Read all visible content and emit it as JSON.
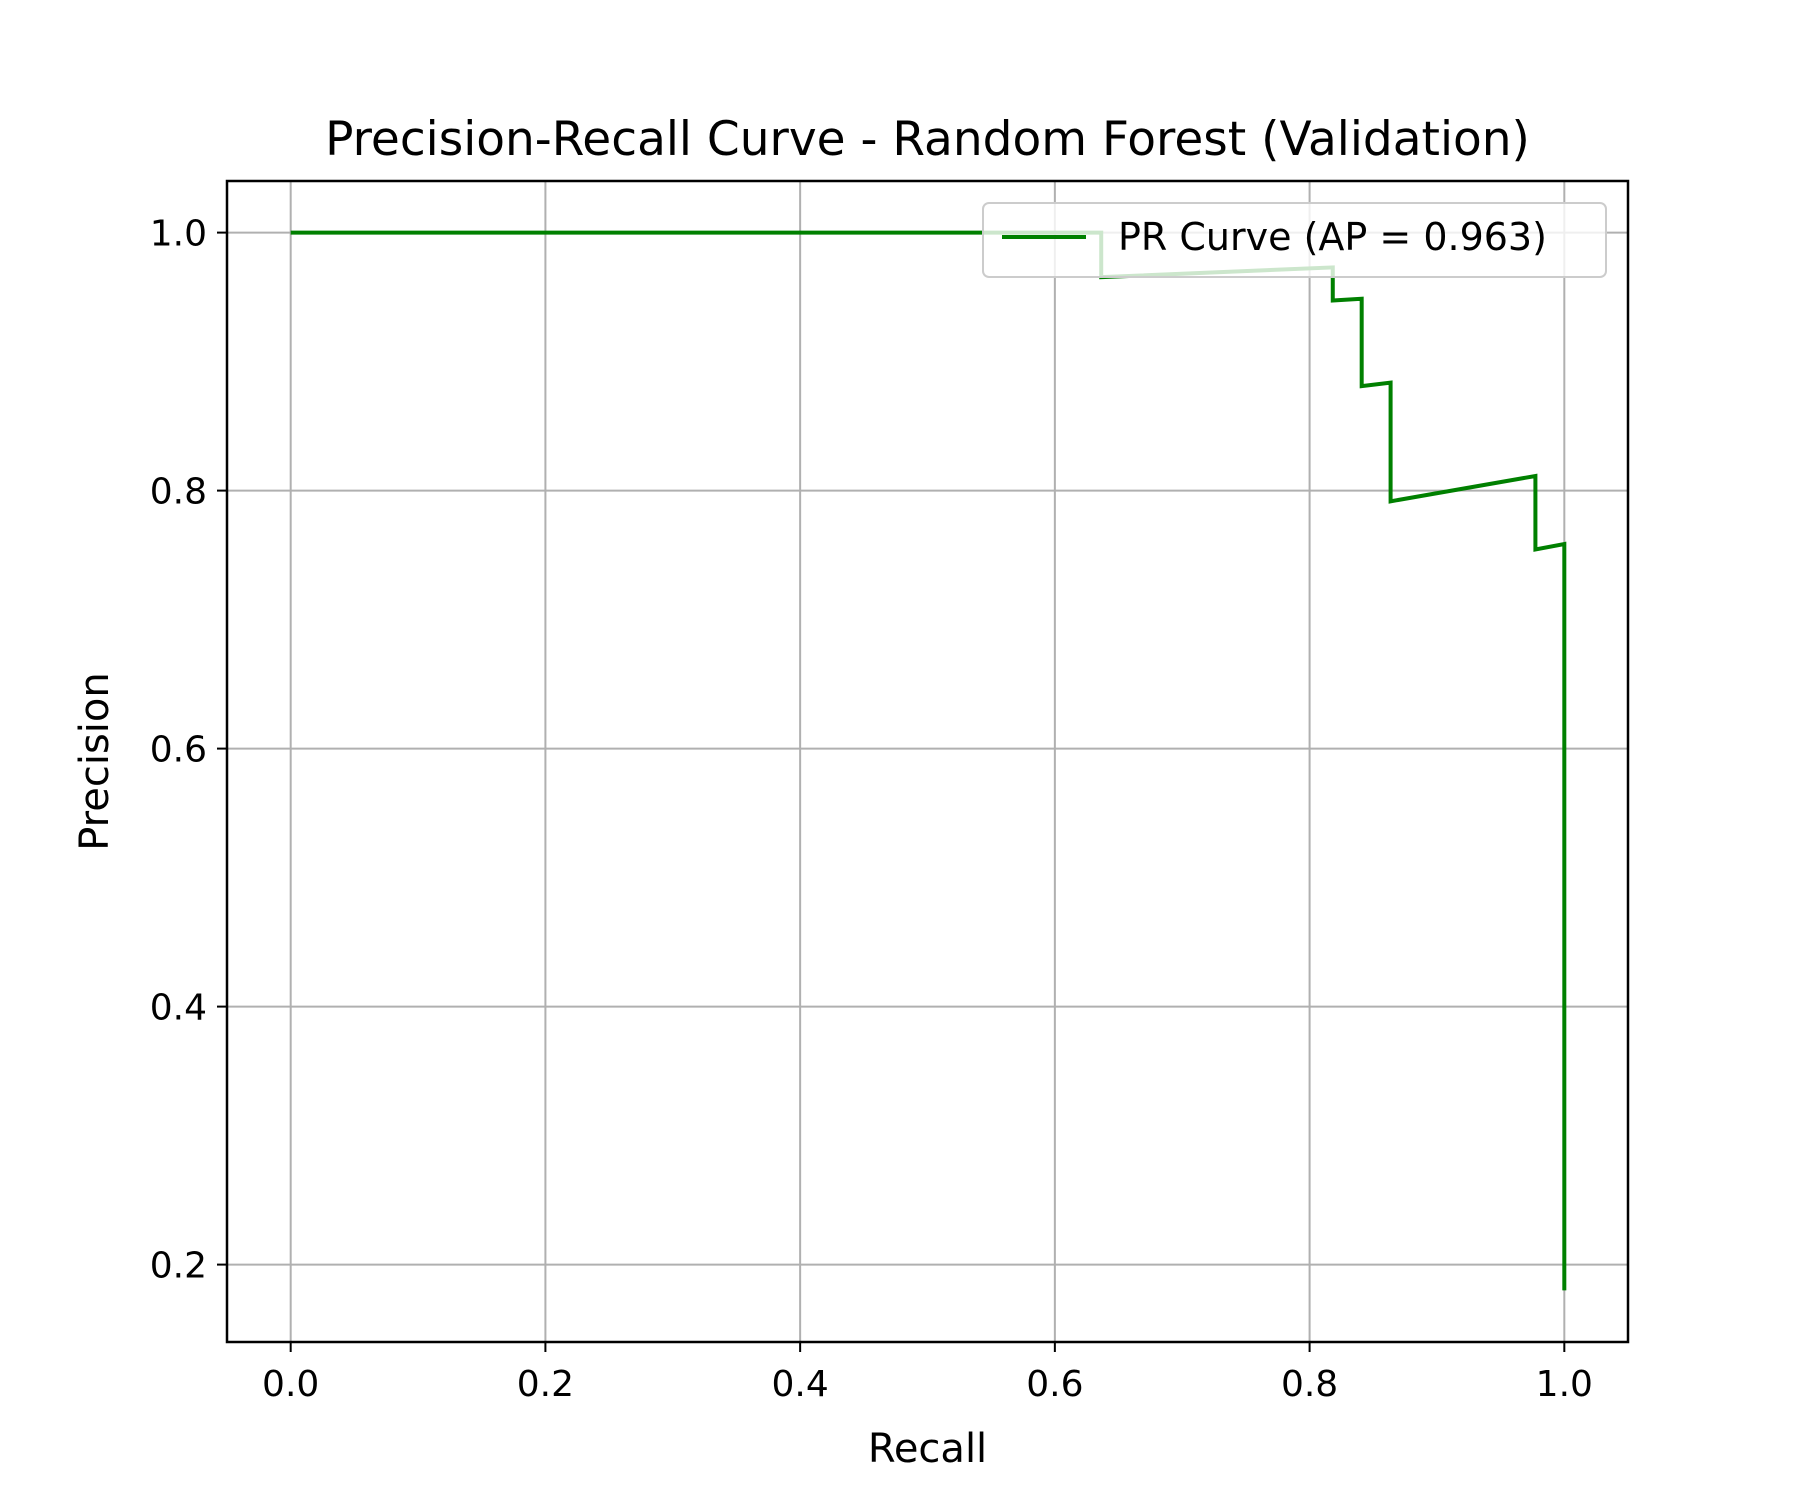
{
  "chart_data": {
    "type": "line",
    "title": "Precision-Recall Curve - Random Forest (Validation)",
    "xlabel": "Recall",
    "ylabel": "Precision",
    "xlim": [
      -0.05,
      1.05
    ],
    "ylim": [
      0.14,
      1.04
    ],
    "xticks": [
      0.0,
      0.2,
      0.4,
      0.6,
      0.8,
      1.0
    ],
    "xtick_labels": [
      "0.0",
      "0.2",
      "0.4",
      "0.6",
      "0.8",
      "1.0"
    ],
    "yticks": [
      0.2,
      0.4,
      0.6,
      0.8,
      1.0
    ],
    "ytick_labels": [
      "0.2",
      "0.4",
      "0.6",
      "0.8",
      "1.0"
    ],
    "grid": true,
    "legend_position": "upper right",
    "series": [
      {
        "name": "PR Curve (AP = 0.963)",
        "color": "#008000",
        "x": [
          0.0,
          0.6364,
          0.6364,
          0.8182,
          0.8182,
          0.8409,
          0.8409,
          0.8636,
          0.8636,
          0.9773,
          0.9773,
          1.0,
          1.0
        ],
        "y": [
          1.0,
          1.0,
          0.9655,
          0.973,
          0.9474,
          0.9487,
          0.881,
          0.8837,
          0.7917,
          0.8113,
          0.7544,
          0.7586,
          0.18
        ]
      }
    ]
  }
}
